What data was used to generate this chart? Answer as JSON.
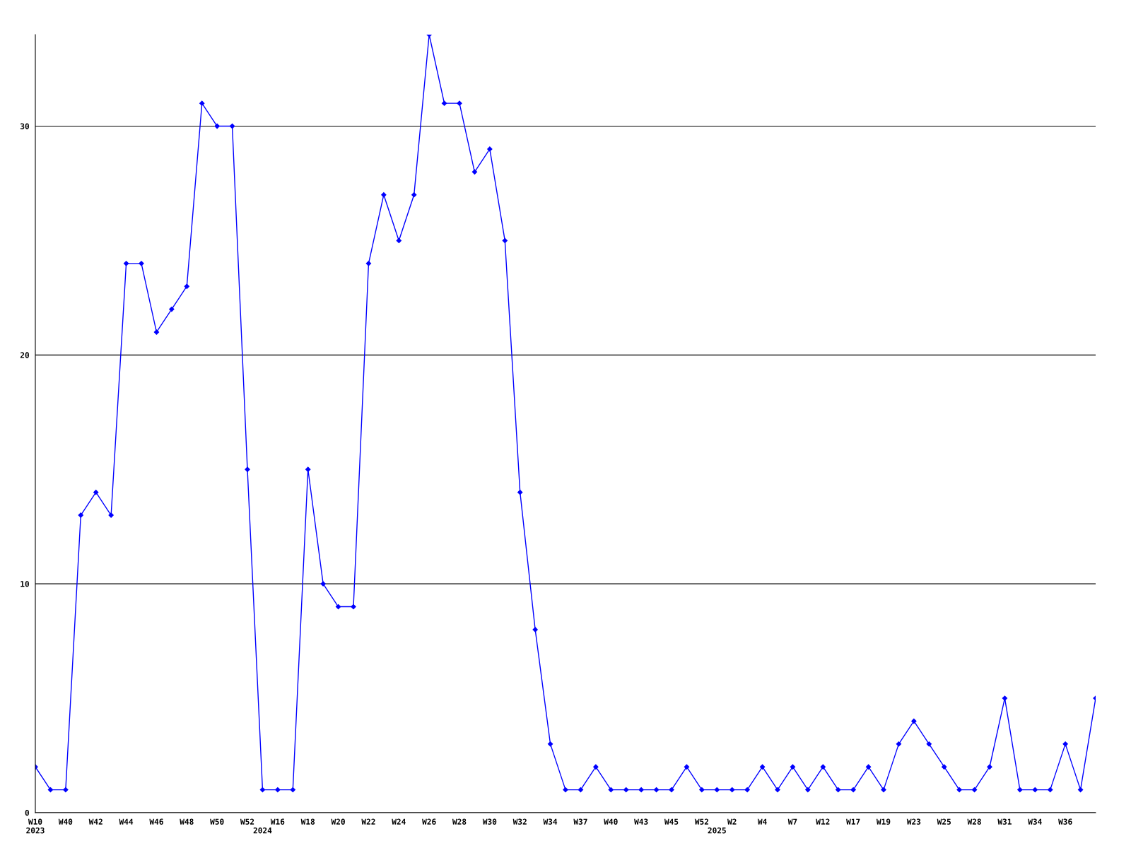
{
  "chart_data": {
    "type": "line",
    "categories": [
      "W10\n2023",
      null,
      "W40",
      null,
      "W42",
      null,
      "W44",
      null,
      "W46",
      null,
      "W48",
      null,
      "W50",
      null,
      "W52",
      "\n2024",
      "W16",
      null,
      "W18",
      null,
      "W20",
      null,
      "W22",
      null,
      "W24",
      null,
      "W26",
      null,
      "W28",
      null,
      "W30",
      null,
      "W32",
      null,
      "W34",
      null,
      "W37",
      null,
      "W40",
      null,
      "W43",
      null,
      "W45",
      null,
      "W52",
      "\n2025",
      "W2",
      null,
      "W4",
      null,
      "W7",
      null,
      "W12",
      null,
      "W17",
      null,
      "W19",
      null,
      "W23",
      null,
      "W25",
      null,
      "W28",
      null,
      "W31",
      null,
      "W34",
      null,
      "W36",
      null,
      null
    ],
    "series": [
      {
        "color": "#0000ff",
        "values": [
          2,
          1,
          1,
          13,
          14,
          13,
          24,
          24,
          21,
          22,
          23,
          31,
          30,
          30,
          15,
          1,
          1,
          1,
          15,
          10,
          9,
          9,
          24,
          27,
          25,
          27,
          34,
          31,
          31,
          28,
          29,
          25,
          14,
          8,
          3,
          1,
          1,
          2,
          1,
          1,
          1,
          1,
          1,
          2,
          1,
          1,
          1,
          1,
          2,
          1,
          2,
          1,
          2,
          1,
          1,
          2,
          1,
          3,
          4,
          3,
          2,
          1,
          1,
          2,
          5,
          1,
          1,
          1,
          3,
          1,
          5
        ]
      }
    ],
    "ylim": [
      0,
      34
    ],
    "yticks": [
      0,
      10,
      20,
      30
    ],
    "grid": "y",
    "marker": "diamond",
    "line_style": "solid",
    "legend": false
  }
}
